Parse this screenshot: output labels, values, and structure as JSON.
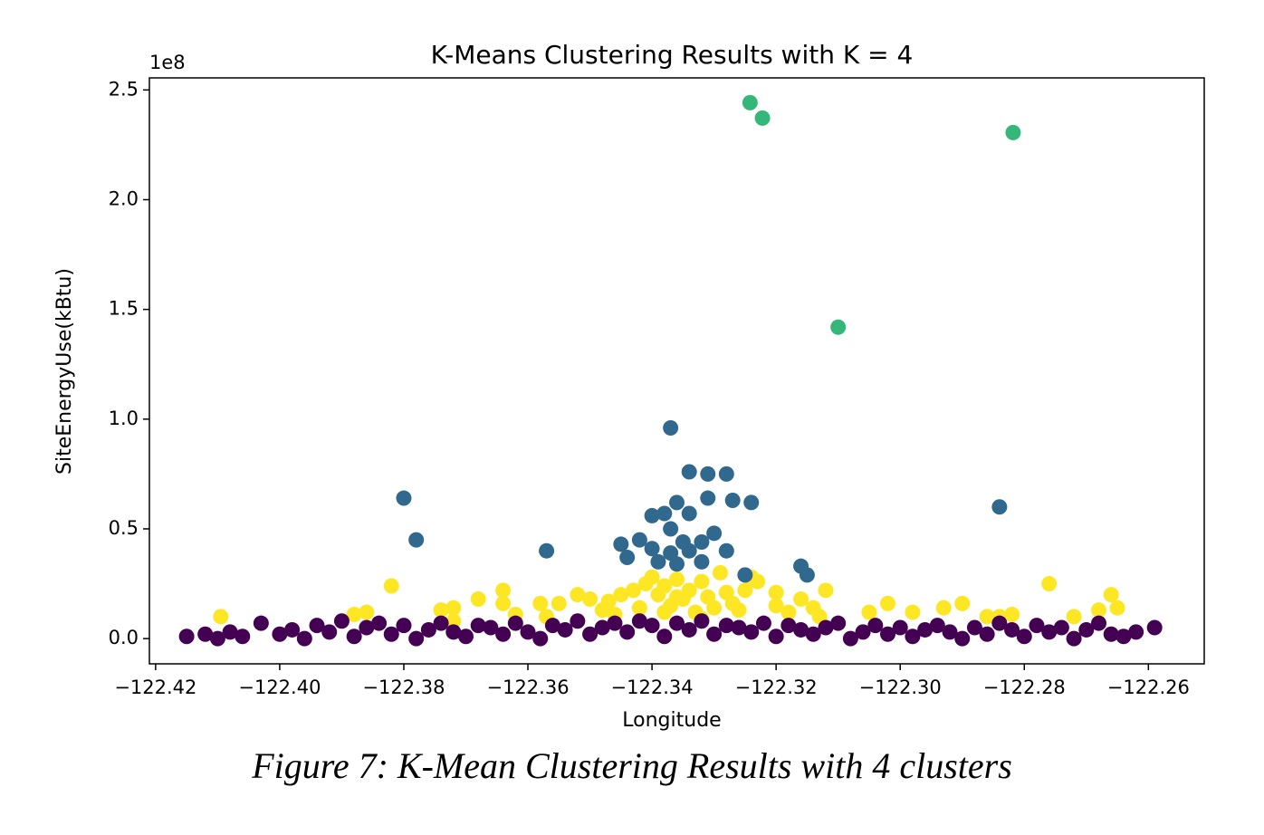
{
  "chart_data": {
    "type": "scatter",
    "title": "K-Means Clustering Results with K = 4",
    "x_label": "Longitude",
    "y_label": "SiteEnergyUse(kBtu)",
    "y_offset_label": "1e8",
    "xlim": [
      -122.421,
      -122.251
    ],
    "ylim": [
      -0.115,
      2.555
    ],
    "xticks": [
      {
        "value": -122.42,
        "label": "−122.42"
      },
      {
        "value": -122.4,
        "label": "−122.40"
      },
      {
        "value": -122.38,
        "label": "−122.38"
      },
      {
        "value": -122.36,
        "label": "−122.36"
      },
      {
        "value": -122.34,
        "label": "−122.34"
      },
      {
        "value": -122.32,
        "label": "−122.32"
      },
      {
        "value": -122.3,
        "label": "−122.30"
      },
      {
        "value": -122.28,
        "label": "−122.28"
      },
      {
        "value": -122.26,
        "label": "−122.26"
      }
    ],
    "yticks": [
      {
        "value": 0,
        "label": "0.0"
      },
      {
        "value": 0.5,
        "label": "0.5"
      },
      {
        "value": 1,
        "label": "1.0"
      },
      {
        "value": 1.5,
        "label": "1.5"
      },
      {
        "value": 2,
        "label": "2.0"
      },
      {
        "value": 2.5,
        "label": "2.5"
      }
    ],
    "grid": false,
    "series": [
      {
        "color": "#fde725",
        "x": [
          -122.4095,
          -122.382,
          -122.386,
          -122.388,
          -122.374,
          -122.372,
          -122.368,
          -122.364,
          -122.364,
          -122.362,
          -122.358,
          -122.355,
          -122.352,
          -122.35,
          -122.347,
          -122.345,
          -122.343,
          -122.341,
          -122.34,
          -122.339,
          -122.338,
          -122.337,
          -122.336,
          -122.335,
          -122.334,
          -122.333,
          -122.332,
          -122.331,
          -122.33,
          -122.329,
          -122.328,
          -122.327,
          -122.325,
          -122.324,
          -122.323,
          -122.32,
          -122.318,
          -122.316,
          -122.314,
          -122.312,
          -122.313,
          -122.305,
          -122.302,
          -122.298,
          -122.293,
          -122.29,
          -122.286,
          -122.284,
          -122.282,
          -122.276,
          -122.272,
          -122.268,
          -122.266,
          -122.265,
          -122.346,
          -122.342,
          -122.338,
          -122.332,
          -122.326,
          -122.348,
          -122.357,
          -122.372,
          -122.32,
          -122.336
        ],
        "values": [
          0.1,
          0.24,
          0.12,
          0.11,
          0.13,
          0.14,
          0.18,
          0.22,
          0.16,
          0.11,
          0.16,
          0.16,
          0.2,
          0.18,
          0.17,
          0.2,
          0.22,
          0.25,
          0.28,
          0.2,
          0.24,
          0.15,
          0.27,
          0.18,
          0.22,
          0.12,
          0.26,
          0.19,
          0.14,
          0.3,
          0.21,
          0.16,
          0.22,
          0.28,
          0.26,
          0.15,
          0.12,
          0.18,
          0.14,
          0.22,
          0.1,
          0.12,
          0.16,
          0.12,
          0.14,
          0.16,
          0.1,
          0.1,
          0.11,
          0.25,
          0.1,
          0.13,
          0.2,
          0.14,
          0.11,
          0.14,
          0.12,
          0.09,
          0.13,
          0.13,
          0.1,
          0.08,
          0.21,
          0.19
        ]
      },
      {
        "color": "#31688e",
        "x": [
          -122.38,
          -122.378,
          -122.357,
          -122.337,
          -122.334,
          -122.331,
          -122.328,
          -122.336,
          -122.331,
          -122.327,
          -122.324,
          -122.334,
          -122.34,
          -122.338,
          -122.337,
          -122.33,
          -122.345,
          -122.342,
          -122.344,
          -122.34,
          -122.335,
          -122.332,
          -122.328,
          -122.339,
          -122.336,
          -122.332,
          -122.325,
          -122.316,
          -122.315,
          -122.284,
          -122.337,
          -122.334
        ],
        "values": [
          0.64,
          0.45,
          0.4,
          0.96,
          0.76,
          0.75,
          0.75,
          0.62,
          0.64,
          0.63,
          0.62,
          0.57,
          0.56,
          0.57,
          0.5,
          0.48,
          0.43,
          0.45,
          0.37,
          0.41,
          0.44,
          0.44,
          0.4,
          0.35,
          0.34,
          0.35,
          0.29,
          0.33,
          0.29,
          0.6,
          0.39,
          0.4
        ]
      },
      {
        "color": "#35b779",
        "x": [
          -122.3242,
          -122.3222,
          -122.2818,
          -122.31
        ],
        "values": [
          2.442,
          2.372,
          2.306,
          1.419
        ]
      },
      {
        "color": "#440154",
        "x": [
          -122.415,
          -122.412,
          -122.41,
          -122.408,
          -122.406,
          -122.403,
          -122.4,
          -122.398,
          -122.396,
          -122.394,
          -122.392,
          -122.39,
          -122.388,
          -122.386,
          -122.384,
          -122.382,
          -122.38,
          -122.378,
          -122.376,
          -122.374,
          -122.372,
          -122.37,
          -122.368,
          -122.366,
          -122.364,
          -122.362,
          -122.36,
          -122.358,
          -122.356,
          -122.354,
          -122.352,
          -122.35,
          -122.348,
          -122.346,
          -122.344,
          -122.342,
          -122.34,
          -122.338,
          -122.336,
          -122.334,
          -122.332,
          -122.33,
          -122.328,
          -122.326,
          -122.324,
          -122.322,
          -122.32,
          -122.318,
          -122.316,
          -122.314,
          -122.312,
          -122.31,
          -122.308,
          -122.306,
          -122.304,
          -122.302,
          -122.3,
          -122.298,
          -122.296,
          -122.294,
          -122.292,
          -122.29,
          -122.288,
          -122.286,
          -122.284,
          -122.282,
          -122.28,
          -122.278,
          -122.276,
          -122.274,
          -122.272,
          -122.27,
          -122.268,
          -122.266,
          -122.264,
          -122.262,
          -122.259
        ],
        "values": [
          0.01,
          0.02,
          0.0,
          0.03,
          0.01,
          0.07,
          0.02,
          0.04,
          0.0,
          0.06,
          0.03,
          0.08,
          0.01,
          0.05,
          0.07,
          0.02,
          0.06,
          0.0,
          0.04,
          0.07,
          0.03,
          0.01,
          0.06,
          0.05,
          0.02,
          0.07,
          0.03,
          0.0,
          0.06,
          0.04,
          0.08,
          0.02,
          0.05,
          0.07,
          0.03,
          0.08,
          0.06,
          0.01,
          0.07,
          0.04,
          0.08,
          0.02,
          0.06,
          0.05,
          0.03,
          0.07,
          0.01,
          0.06,
          0.04,
          0.02,
          0.05,
          0.07,
          0.0,
          0.03,
          0.06,
          0.02,
          0.05,
          0.01,
          0.04,
          0.06,
          0.03,
          0.0,
          0.05,
          0.02,
          0.07,
          0.04,
          0.01,
          0.06,
          0.03,
          0.05,
          0.0,
          0.04,
          0.07,
          0.02,
          0.01,
          0.03,
          0.05
        ]
      }
    ]
  },
  "caption": "Figure 7: K-Mean Clustering Results with 4 clusters"
}
